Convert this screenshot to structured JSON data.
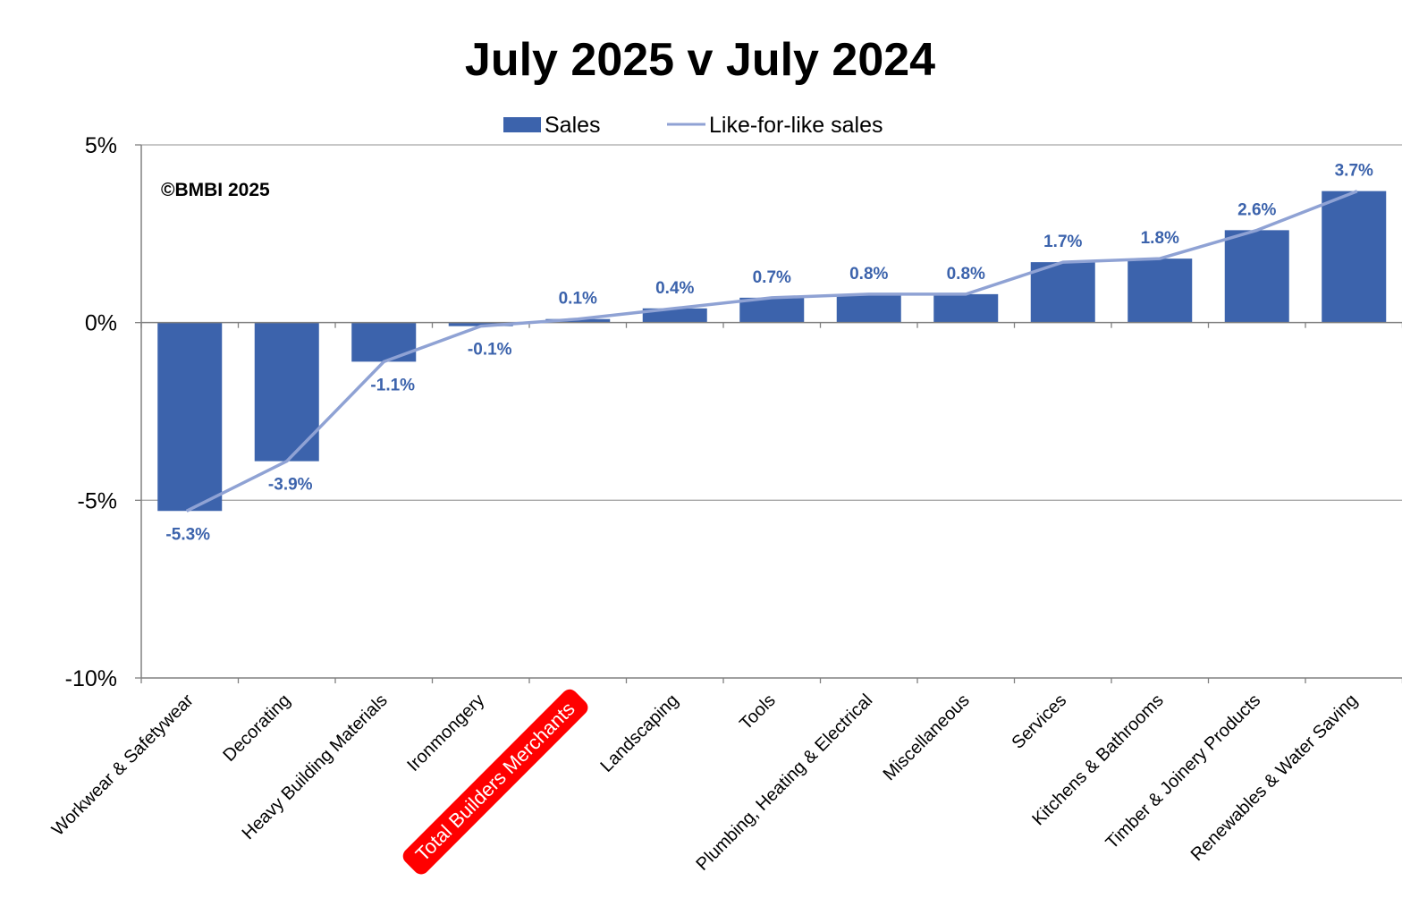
{
  "chart_data": {
    "type": "bar",
    "title": "July 2025 v July 2024",
    "copyright": "©BMBI 2025",
    "categories": [
      "Workwear & Safetywear",
      "Decorating",
      "Heavy Building Materials",
      "Ironmongery",
      "Total Builders Merchants",
      "Landscaping",
      "Tools",
      "Plumbing, Heating & Electrical",
      "Miscellaneous",
      "Services",
      "Kitchens & Bathrooms",
      "Timber & Joinery Products",
      "Renewables & Water Saving"
    ],
    "highlighted_category": "Total Builders Merchants",
    "series": [
      {
        "name": "Sales",
        "kind": "bar",
        "color": "#3c63ac",
        "values": [
          -5.3,
          -3.9,
          -1.1,
          -0.1,
          0.1,
          0.4,
          0.7,
          0.8,
          0.8,
          1.7,
          1.8,
          2.6,
          3.7
        ],
        "labels": [
          "-5.3%",
          "-3.9%",
          "-1.1%",
          "-0.1%",
          "0.1%",
          "0.4%",
          "0.7%",
          "0.8%",
          "0.8%",
          "1.7%",
          "1.8%",
          "2.6%",
          "3.7%"
        ]
      },
      {
        "name": "Like-for-like sales",
        "kind": "line",
        "color": "#8fa2d4",
        "values": [
          -5.3,
          -3.9,
          -1.1,
          -0.1,
          0.1,
          0.4,
          0.7,
          0.8,
          0.8,
          1.7,
          1.8,
          2.6,
          3.7
        ]
      }
    ],
    "ylim": [
      -10,
      5
    ],
    "yticks": [
      5,
      0,
      -5,
      -10
    ],
    "ytick_labels": [
      "5%",
      "0%",
      "-5%",
      "-10%"
    ],
    "xlabel": "",
    "ylabel": "",
    "gridlines": true,
    "legend_position": "top-center",
    "label_color": "#3c63ac",
    "highlight_color": "#ff0000"
  }
}
